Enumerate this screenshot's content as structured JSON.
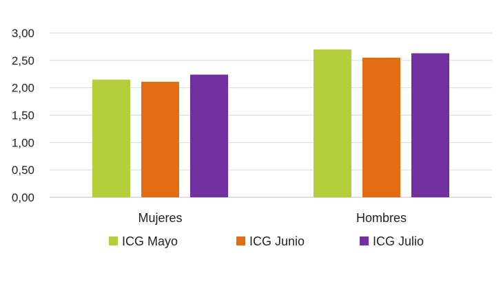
{
  "chart_data": {
    "type": "bar",
    "categories": [
      "Mujeres",
      "Hombres"
    ],
    "series": [
      {
        "name": "ICG Mayo",
        "values": [
          2.15,
          2.7
        ],
        "color": "#b5cf3c"
      },
      {
        "name": "ICG Junio",
        "values": [
          2.11,
          2.55
        ],
        "color": "#e46c12"
      },
      {
        "name": "ICG Julio",
        "values": [
          2.24,
          2.63
        ],
        "color": "#7030a0"
      }
    ],
    "ylim": [
      0,
      3
    ],
    "yticks": [
      0,
      0.5,
      1,
      1.5,
      2,
      2.5,
      3
    ],
    "ytick_labels": [
      "0,00",
      "0,50",
      "1,00",
      "1,50",
      "2,00",
      "2,50",
      "3,00"
    ],
    "title": "",
    "xlabel": "",
    "ylabel": "",
    "grid": true,
    "legend_position": "bottom"
  }
}
